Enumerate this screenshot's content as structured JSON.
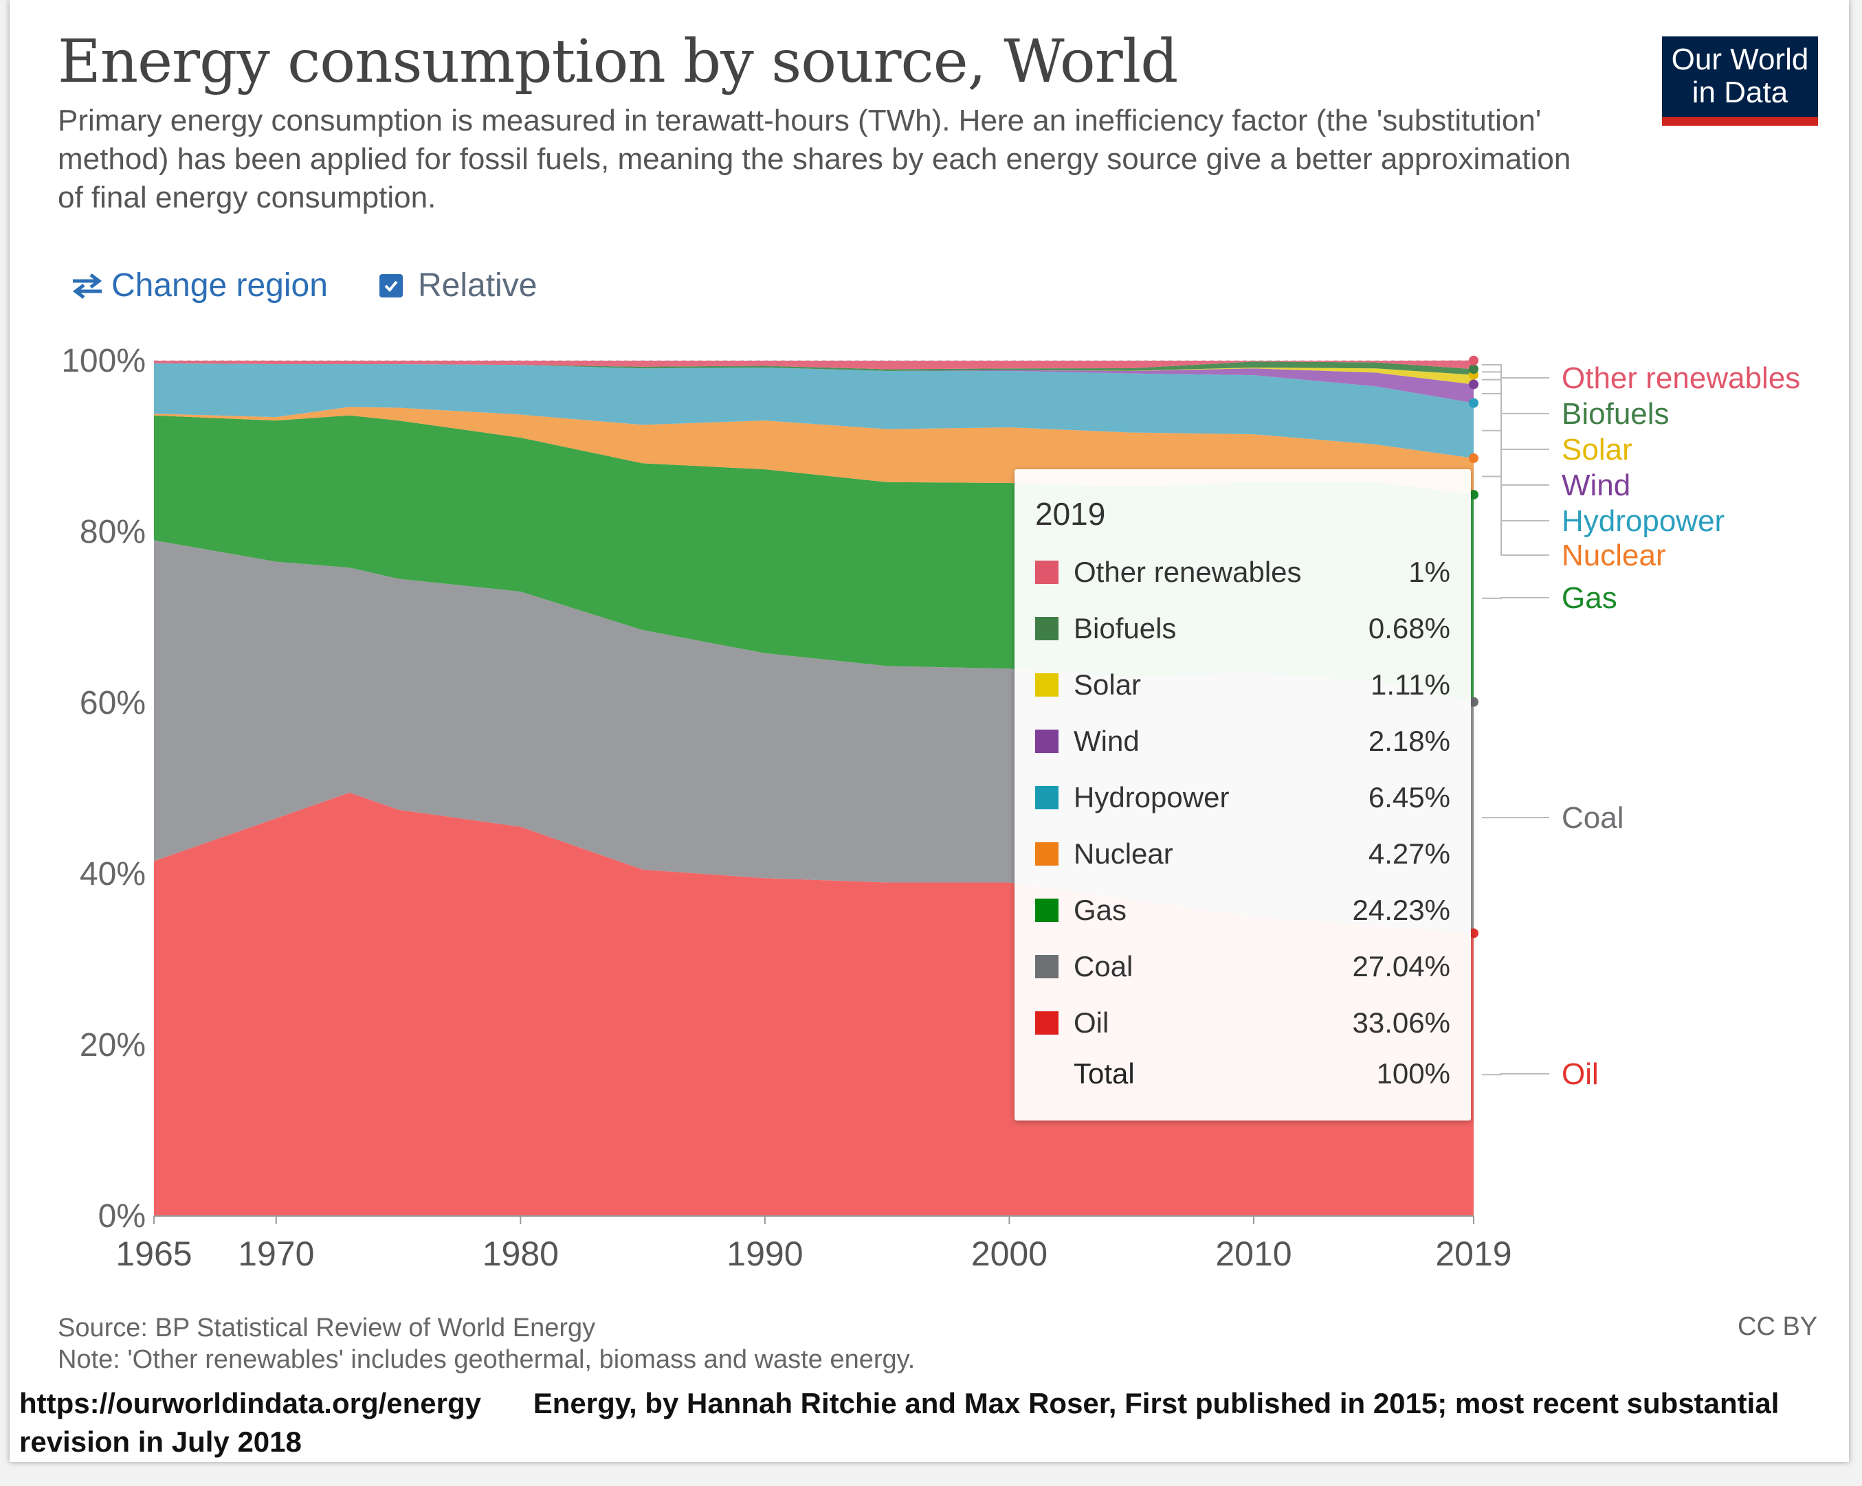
{
  "header": {
    "title": "Energy consumption by source, World",
    "subtitle": "Primary energy consumption is measured in terawatt-hours (TWh). Here an inefficiency factor (the 'substitution' method) has been applied for fossil fuels, meaning the shares by each energy source give a better approximation of final energy consumption.",
    "logo_line1": "Our World",
    "logo_line2": "in Data"
  },
  "controls": {
    "change_region": "Change region",
    "relative": "Relative",
    "relative_checked": true
  },
  "tooltip": {
    "year": "2019",
    "rows": [
      {
        "name": "Other renewables",
        "value": "1%",
        "color": "#e0566b"
      },
      {
        "name": "Biofuels",
        "value": "0.68%",
        "color": "#3f7f47"
      },
      {
        "name": "Solar",
        "value": "1.11%",
        "color": "#e5c900"
      },
      {
        "name": "Wind",
        "value": "2.18%",
        "color": "#7d3f98"
      },
      {
        "name": "Hydropower",
        "value": "6.45%",
        "color": "#1a9bb4"
      },
      {
        "name": "Nuclear",
        "value": "4.27%",
        "color": "#ee7f16"
      },
      {
        "name": "Gas",
        "value": "24.23%",
        "color": "#00860d"
      },
      {
        "name": "Coal",
        "value": "27.04%",
        "color": "#6d6f73"
      },
      {
        "name": "Oil",
        "value": "33.06%",
        "color": "#e0201c"
      }
    ],
    "total_label": "Total",
    "total_value": "100%"
  },
  "chart_data": {
    "type": "area",
    "stacked": true,
    "relative": true,
    "title": "Energy consumption by source, World",
    "xlabel": "",
    "ylabel": "",
    "xlim": [
      1965,
      2019
    ],
    "ylim": [
      0,
      100
    ],
    "x": [
      1965,
      1970,
      1973,
      1975,
      1980,
      1985,
      1990,
      1995,
      2000,
      2005,
      2010,
      2015,
      2019
    ],
    "x_tick_labels": [
      "1965",
      "1970",
      "1980",
      "1990",
      "2000",
      "2010",
      "2019"
    ],
    "x_tick_values": [
      1965,
      1970,
      1980,
      1990,
      2000,
      2010,
      2019
    ],
    "y_tick_labels": [
      "0%",
      "20%",
      "40%",
      "60%",
      "80%",
      "100%"
    ],
    "y_tick_values": [
      0,
      20,
      40,
      60,
      80,
      100
    ],
    "series": [
      {
        "name": "Oil",
        "color": "#f26464",
        "values": [
          41.5,
          46.5,
          49.5,
          47.5,
          45.5,
          40.5,
          39.5,
          39.0,
          39.0,
          37.0,
          35.0,
          34.0,
          33.06
        ]
      },
      {
        "name": "Coal",
        "color": "#9a9b9f",
        "values": [
          37.5,
          30.0,
          26.3,
          27.0,
          27.5,
          28.0,
          26.3,
          25.3,
          25.0,
          26.0,
          28.5,
          28.5,
          27.04
        ]
      },
      {
        "name": "Gas",
        "color": "#3ea448",
        "values": [
          14.6,
          16.5,
          17.8,
          18.5,
          18.0,
          19.5,
          21.5,
          21.5,
          21.7,
          22.3,
          22.3,
          23.3,
          24.23
        ]
      },
      {
        "name": "Nuclear",
        "color": "#f3a558",
        "values": [
          0.2,
          0.4,
          1.0,
          1.5,
          2.7,
          4.5,
          5.7,
          6.2,
          6.5,
          6.3,
          5.6,
          4.4,
          4.27
        ]
      },
      {
        "name": "Hydropower",
        "color": "#6bb5ca",
        "values": [
          5.9,
          6.2,
          5.0,
          5.1,
          5.8,
          6.6,
          6.2,
          6.8,
          6.6,
          6.9,
          6.9,
          6.8,
          6.45
        ]
      },
      {
        "name": "Wind",
        "color": "#a56fbe",
        "values": [
          0,
          0,
          0,
          0,
          0,
          0,
          0,
          0,
          0.1,
          0.3,
          0.8,
          1.6,
          2.18
        ]
      },
      {
        "name": "Solar",
        "color": "#e9d33b",
        "values": [
          0,
          0,
          0,
          0,
          0,
          0,
          0,
          0,
          0,
          0.02,
          0.1,
          0.5,
          1.11
        ]
      },
      {
        "name": "Biofuels",
        "color": "#4f8f57",
        "values": [
          0,
          0,
          0,
          0,
          0,
          0.2,
          0.2,
          0.2,
          0.2,
          0.3,
          0.7,
          0.7,
          0.68
        ]
      },
      {
        "name": "Other renewables",
        "color": "#e46a80",
        "values": [
          0.3,
          0.4,
          0.4,
          0.4,
          0.5,
          0.7,
          0.6,
          1.0,
          0.9,
          0.88,
          0.1,
          0.2,
          1.0
        ]
      }
    ],
    "legend": [
      {
        "name": "Other renewables",
        "color": "#e0566b"
      },
      {
        "name": "Biofuels",
        "color": "#3f7f47"
      },
      {
        "name": "Solar",
        "color": "#e5b800"
      },
      {
        "name": "Wind",
        "color": "#7d3f98"
      },
      {
        "name": "Hydropower",
        "color": "#2a9fbf"
      },
      {
        "name": "Nuclear",
        "color": "#f07b28"
      },
      {
        "name": "Gas",
        "color": "#198a28"
      },
      {
        "name": "Coal",
        "color": "#6d6f73"
      },
      {
        "name": "Oil",
        "color": "#e3322c"
      }
    ],
    "legend_placement": "right",
    "grid": true
  },
  "footer": {
    "source": "Source: BP Statistical Review of World Energy",
    "note": "Note: 'Other renewables' includes geothermal, biomass and waste energy.",
    "license": "CC BY",
    "link": "https://ourworldindata.org/energy",
    "citation": "Energy, by Hannah Ritchie and Max Roser, First published in 2015; most recent substantial revision in July 2018"
  }
}
